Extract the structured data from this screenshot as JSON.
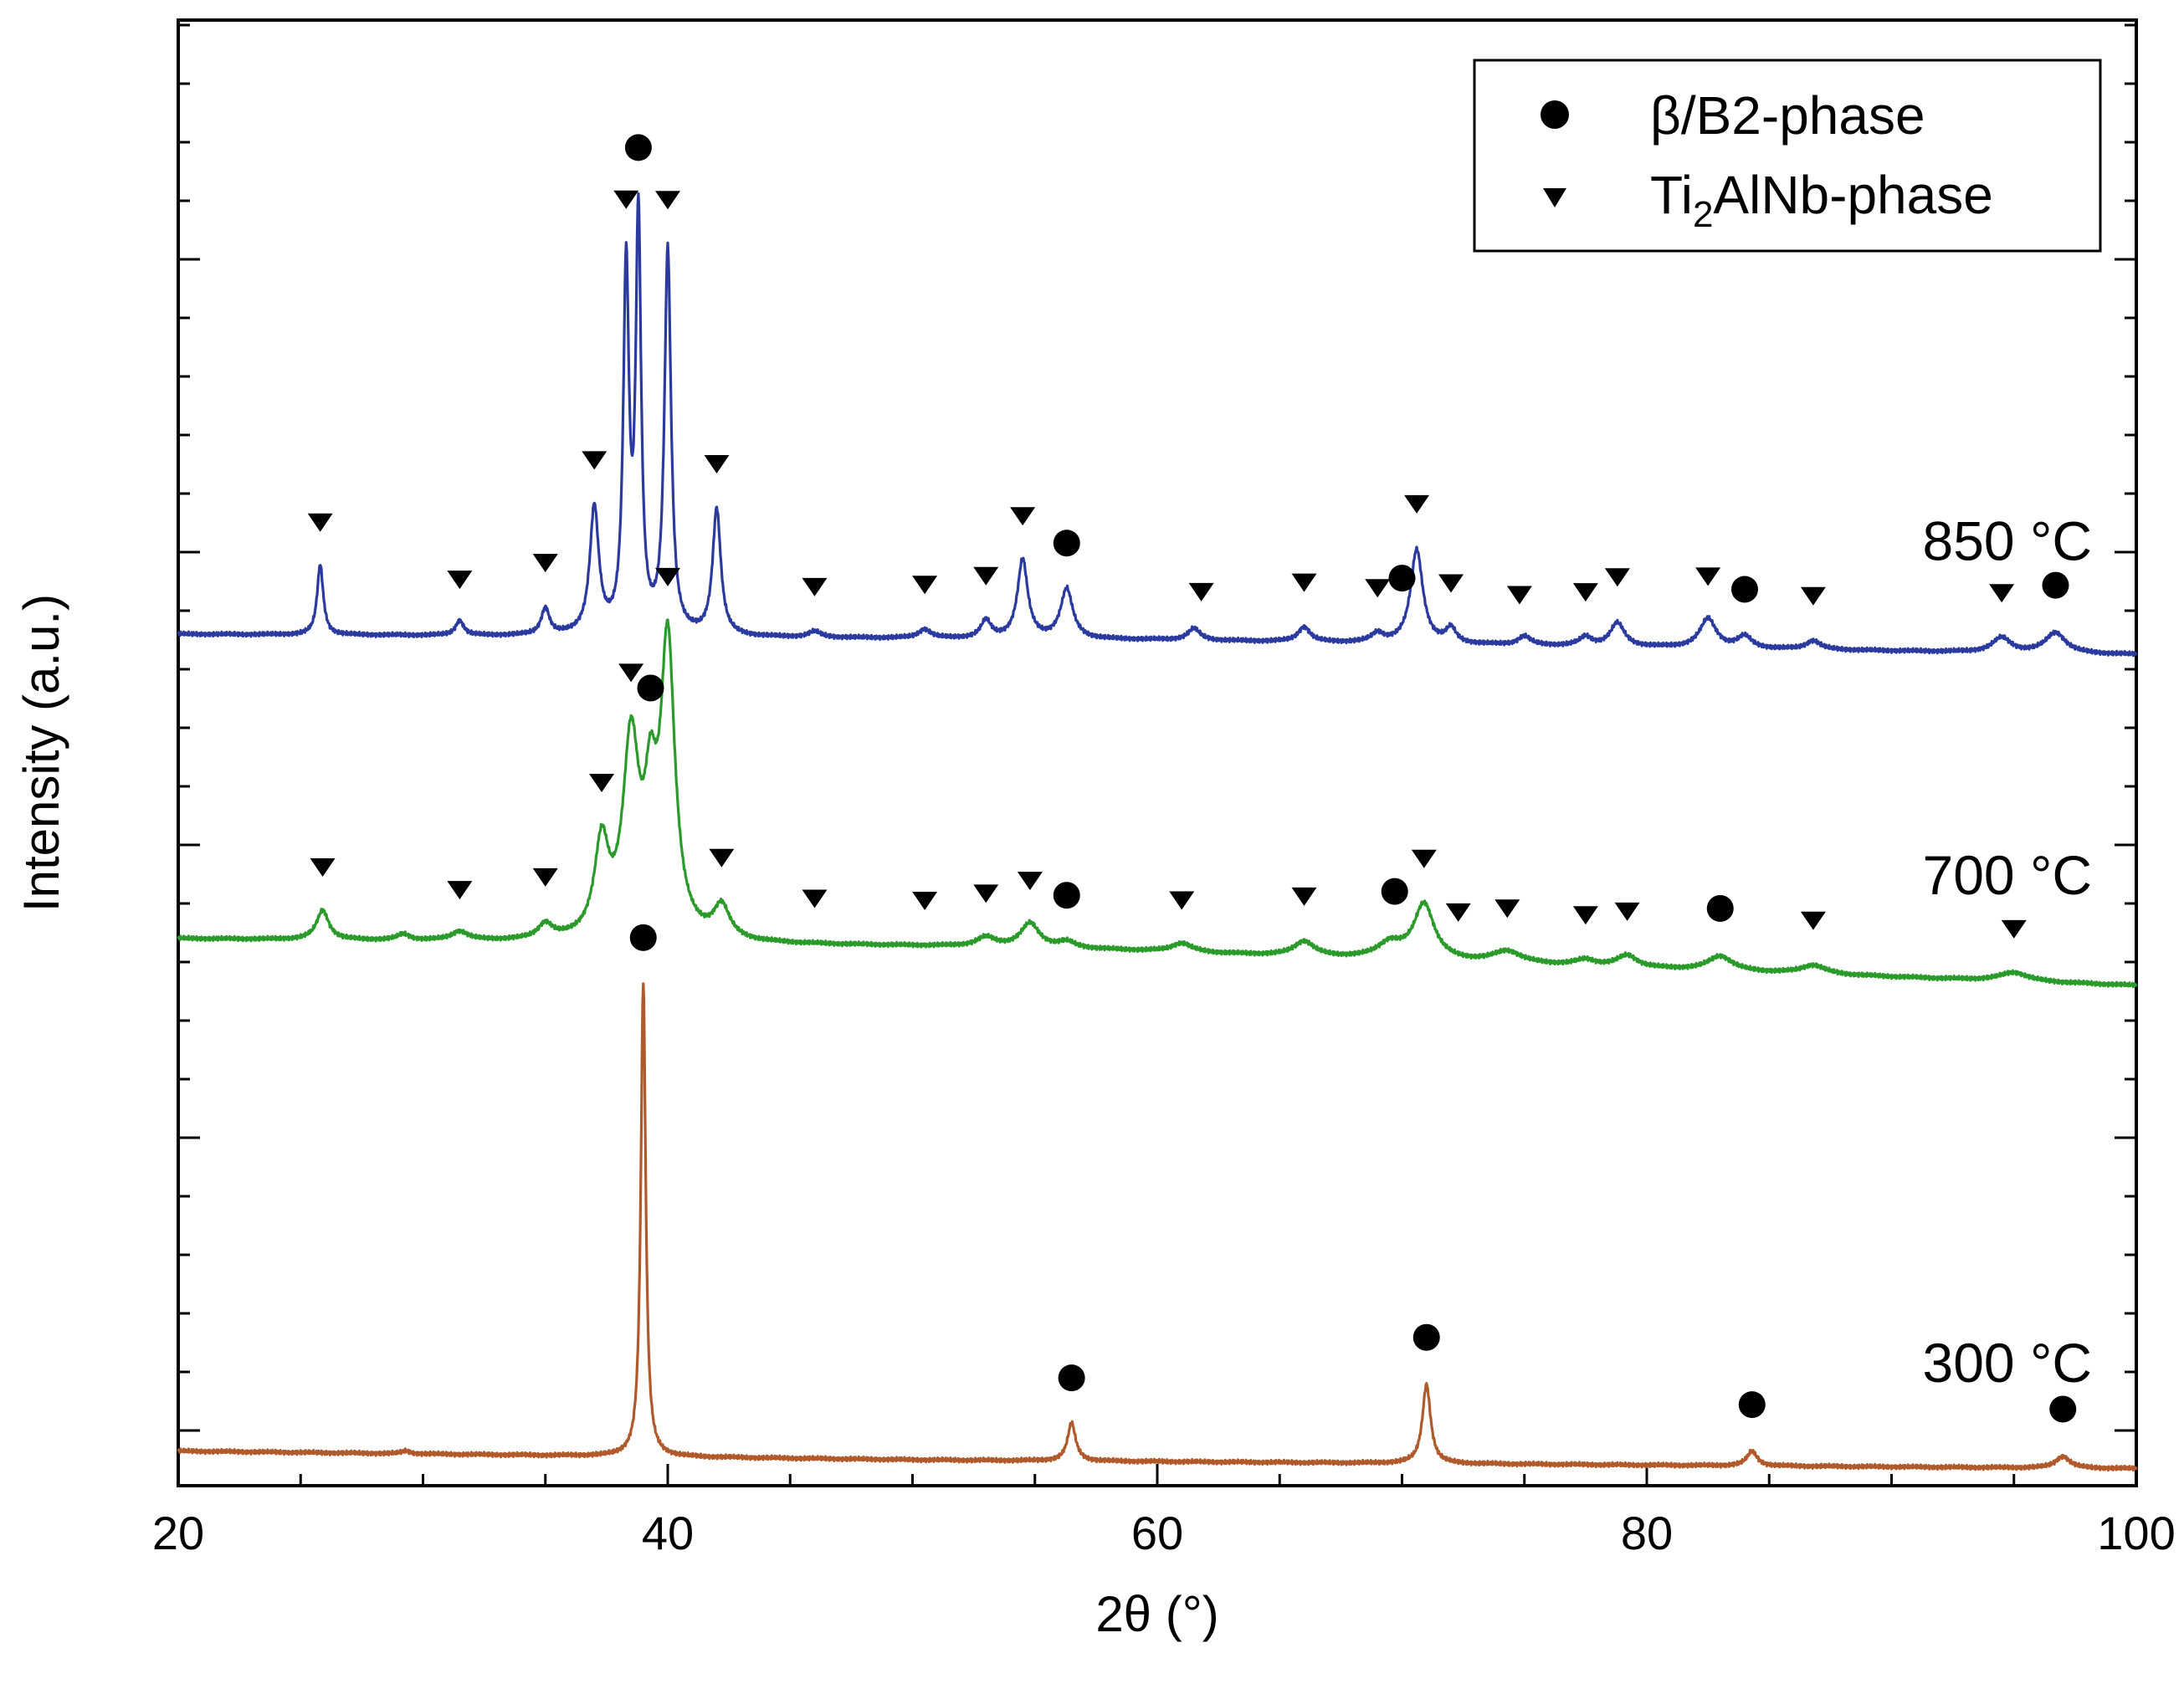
{
  "chart_data": {
    "type": "line",
    "title": "",
    "xlabel": "2θ (°)",
    "ylabel": "Intensity (a.u.)",
    "xlim": [
      20,
      100
    ],
    "x_ticks": [
      "20",
      "40",
      "60",
      "80",
      "100"
    ],
    "y_ticks_labeled": false,
    "grid": false,
    "legend": {
      "position": "top-right",
      "entries": [
        {
          "marker": "circle",
          "label": "β/B2-phase"
        },
        {
          "marker": "triangle-down",
          "label_main": "Ti",
          "label_sub": "2",
          "label_rest": "AlNb-phase"
        }
      ]
    },
    "series": [
      {
        "name": "850 °C",
        "color": "#2b3a9e",
        "offset": 1.8,
        "baseline": [
          [
            20,
            0.02
          ],
          [
            60,
            0.0
          ],
          [
            100,
            -0.05
          ]
        ],
        "peaks": [
          [
            25.8,
            0.24,
            0.15
          ],
          [
            31.5,
            0.05,
            0.2
          ],
          [
            35.0,
            0.09,
            0.2
          ],
          [
            37.0,
            0.43,
            0.22
          ],
          [
            38.3,
            1.23,
            0.14
          ],
          [
            38.8,
            1.4,
            0.13
          ],
          [
            40.0,
            1.31,
            0.16
          ],
          [
            42.0,
            0.43,
            0.2
          ],
          [
            46.0,
            0.02,
            0.3
          ],
          [
            50.5,
            0.03,
            0.3
          ],
          [
            53.0,
            0.06,
            0.25
          ],
          [
            54.5,
            0.27,
            0.25
          ],
          [
            56.3,
            0.17,
            0.3
          ],
          [
            61.5,
            0.04,
            0.3
          ],
          [
            66.0,
            0.05,
            0.3
          ],
          [
            69.0,
            0.03,
            0.3
          ],
          [
            70.6,
            0.32,
            0.3
          ],
          [
            72.0,
            0.05,
            0.25
          ],
          [
            75.0,
            0.03,
            0.3
          ],
          [
            77.5,
            0.03,
            0.3
          ],
          [
            78.8,
            0.08,
            0.35
          ],
          [
            82.5,
            0.1,
            0.4
          ],
          [
            84.0,
            0.04,
            0.35
          ],
          [
            86.8,
            0.03,
            0.35
          ],
          [
            94.5,
            0.05,
            0.45
          ],
          [
            96.7,
            0.07,
            0.5
          ]
        ]
      },
      {
        "name": "700 °C",
        "color": "#2a9a2a",
        "offset": 0.77,
        "baseline": [
          [
            20,
            0.01
          ],
          [
            55,
            -0.02
          ],
          [
            100,
            -0.15
          ]
        ],
        "peaks": [
          [
            25.9,
            0.1,
            0.3
          ],
          [
            29.2,
            0.02,
            0.3
          ],
          [
            31.5,
            0.03,
            0.4
          ],
          [
            35.0,
            0.05,
            0.35
          ],
          [
            37.3,
            0.31,
            0.35
          ],
          [
            38.5,
            0.65,
            0.4
          ],
          [
            39.3,
            0.38,
            0.3
          ],
          [
            40.0,
            0.99,
            0.35
          ],
          [
            42.2,
            0.11,
            0.4
          ],
          [
            53.0,
            0.03,
            0.45
          ],
          [
            54.8,
            0.08,
            0.45
          ],
          [
            56.3,
            0.02,
            0.4
          ],
          [
            61.0,
            0.03,
            0.5
          ],
          [
            66.0,
            0.05,
            0.5
          ],
          [
            69.5,
            0.05,
            0.6
          ],
          [
            70.9,
            0.19,
            0.5
          ],
          [
            74.3,
            0.04,
            0.7
          ],
          [
            77.5,
            0.02,
            0.5
          ],
          [
            79.2,
            0.04,
            0.5
          ],
          [
            83.0,
            0.05,
            0.6
          ],
          [
            86.8,
            0.03,
            0.6
          ],
          [
            95.0,
            0.03,
            0.7
          ]
        ]
      },
      {
        "name": "300 °C",
        "color": "#b0592a",
        "offset": -1.0,
        "baseline": [
          [
            20,
            0.03
          ],
          [
            50,
            0.0
          ],
          [
            100,
            -0.03
          ]
        ],
        "peaks": [
          [
            29.3,
            0.01,
            0.2
          ],
          [
            39.0,
            1.62,
            0.12
          ],
          [
            56.5,
            0.13,
            0.2
          ],
          [
            71.0,
            0.27,
            0.2
          ],
          [
            84.3,
            0.05,
            0.25
          ],
          [
            97.0,
            0.04,
            0.35
          ]
        ]
      }
    ],
    "markers": {
      "850 °C": {
        "triangles": [
          25.8,
          31.5,
          35.0,
          37.0,
          38.3,
          40.0,
          42.0,
          46.0,
          50.5,
          53.0,
          54.5,
          61.8,
          66.0,
          69.0,
          70.6,
          72.0,
          74.8,
          77.5,
          78.8,
          82.5,
          86.8,
          94.5
        ],
        "circles": [
          38.8,
          56.3,
          70.0,
          84.0,
          96.7
        ]
      },
      "700 °C": {
        "triangles": [
          25.9,
          31.5,
          35.0,
          37.3,
          38.5,
          40.0,
          42.2,
          46.0,
          50.5,
          53.0,
          54.8,
          61.0,
          66.0,
          70.9,
          72.3,
          74.3,
          77.5,
          79.2,
          86.8,
          95.0
        ],
        "circles": [
          39.3,
          56.3,
          69.7,
          83.0
        ]
      },
      "300 °C": {
        "circles": [
          39.0,
          56.5,
          71.0,
          84.3,
          97.0
        ]
      }
    }
  }
}
